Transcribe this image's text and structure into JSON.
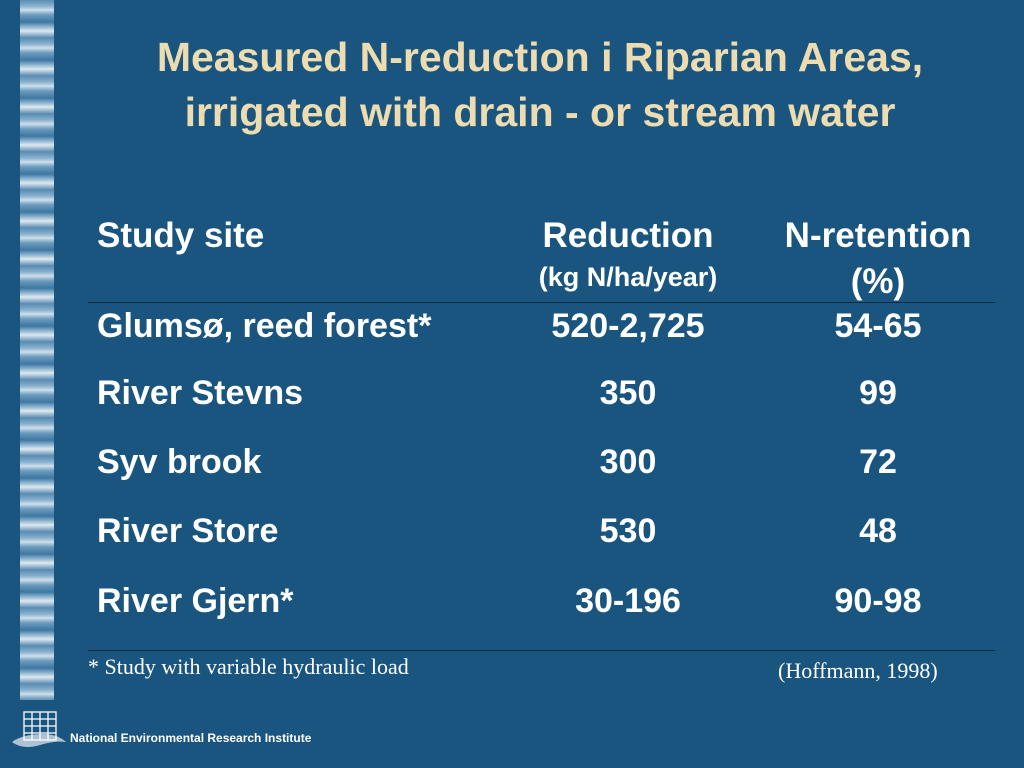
{
  "title": {
    "line1": "Measured N-reduction i Riparian Areas,",
    "line2": "irrigated with drain - or stream water"
  },
  "table": {
    "headers": {
      "site": "Study site",
      "reduction": "Reduction",
      "reduction_unit": "(kg N/ha/year)",
      "retention": "N-retention",
      "retention_unit": "(%)"
    },
    "rows": [
      {
        "site": "Glumsø, reed forest*",
        "reduction": "520-2,725",
        "retention": "54-65"
      },
      {
        "site": "River Stevns",
        "reduction": "350",
        "retention": "99"
      },
      {
        "site": "Syv brook",
        "reduction": "300",
        "retention": "72"
      },
      {
        "site": "River Store",
        "reduction": "530",
        "retention": "48"
      },
      {
        "site": "River Gjern*",
        "reduction": "30-196",
        "retention": "90-98"
      }
    ]
  },
  "footnote": "* Study with variable hydraulic load",
  "citation": "(Hoffmann, 1998)",
  "institute": "National Environmental Research Institute",
  "colors": {
    "background": "#1a5580",
    "title": "#ecdcb0",
    "text": "#ffffff"
  }
}
